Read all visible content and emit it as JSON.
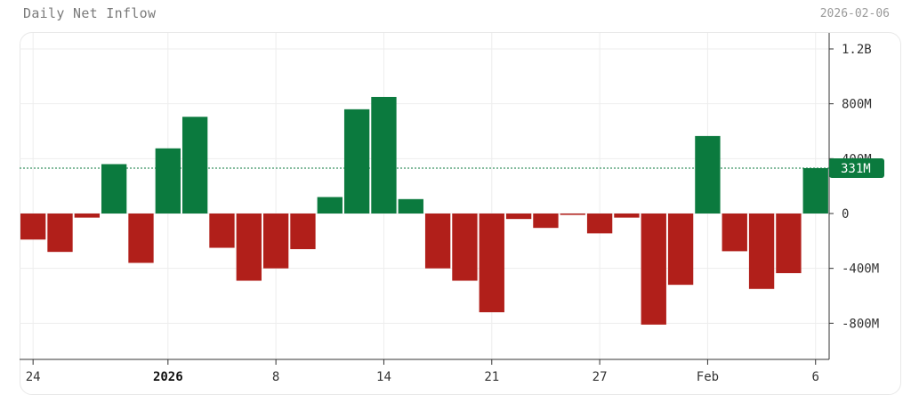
{
  "header": {
    "title": "Daily Net Inflow",
    "date": "2026-02-06"
  },
  "colors": {
    "positive": "#0b7a3e",
    "negative": "#b11f1a",
    "grid": "#ededed",
    "reference_line": "#0b7a3e"
  },
  "chart_data": {
    "type": "bar",
    "title": "Daily Net Inflow",
    "xlabel": "",
    "ylabel": "",
    "ylim": [
      -1050,
      1250
    ],
    "unit": "M",
    "y_ticks": [
      {
        "value": 1200,
        "label": "1.2B"
      },
      {
        "value": 800,
        "label": "800M"
      },
      {
        "value": 400,
        "label": "400M"
      },
      {
        "value": 0,
        "label": "0"
      },
      {
        "value": -400,
        "label": "-400M"
      },
      {
        "value": -800,
        "label": "-800M"
      }
    ],
    "x_ticks": [
      {
        "index": 0,
        "label": "24",
        "bold": false
      },
      {
        "index": 5,
        "label": "2026",
        "bold": true
      },
      {
        "index": 9,
        "label": "8",
        "bold": false
      },
      {
        "index": 13,
        "label": "14",
        "bold": false
      },
      {
        "index": 17,
        "label": "21",
        "bold": false
      },
      {
        "index": 21,
        "label": "27",
        "bold": false
      },
      {
        "index": 25,
        "label": "Feb",
        "bold": false
      },
      {
        "index": 29,
        "label": "6",
        "bold": false
      }
    ],
    "values": [
      -190,
      -280,
      -30,
      360,
      -360,
      475,
      705,
      -250,
      -490,
      -400,
      -260,
      120,
      760,
      850,
      105,
      -400,
      -490,
      -720,
      -40,
      -105,
      -10,
      -145,
      -30,
      -810,
      -520,
      565,
      -275,
      -550,
      -435,
      331
    ],
    "last_value": 331,
    "last_value_label": "331M",
    "grid": true,
    "legend": "none",
    "y_axis_position": "right"
  }
}
